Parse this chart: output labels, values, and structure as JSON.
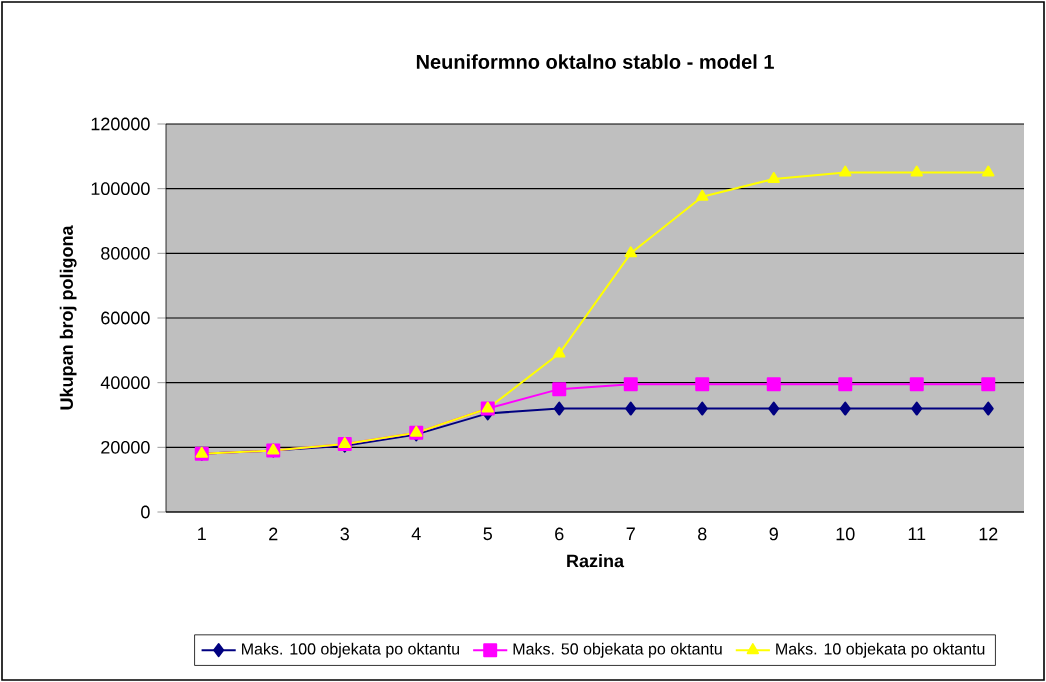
{
  "chart_data": {
    "type": "line",
    "title": "Neuniformno oktalno stablo - model 1",
    "xlabel": "Razina",
    "ylabel": "Ukupan broj poligona",
    "categories": [
      "1",
      "2",
      "3",
      "4",
      "5",
      "6",
      "7",
      "8",
      "9",
      "10",
      "11",
      "12"
    ],
    "series": [
      {
        "name": "Maks. 100 objekata po oktantu",
        "color": "#000080",
        "marker": "diamond",
        "values": [
          18000,
          19000,
          20500,
          24000,
          30500,
          32000,
          32000,
          32000,
          32000,
          32000,
          32000,
          32000
        ]
      },
      {
        "name": "Maks. 50 objekata po oktantu",
        "color": "#ff00ff",
        "marker": "square",
        "values": [
          18000,
          19000,
          21000,
          24500,
          32000,
          38000,
          39500,
          39500,
          39500,
          39500,
          39500,
          39500
        ]
      },
      {
        "name": "Maks. 10 objekata po oktantu",
        "color": "#ffff00",
        "marker": "triangle",
        "values": [
          18000,
          19000,
          21000,
          24500,
          32000,
          49000,
          80000,
          97500,
          103000,
          105000,
          105000,
          105000
        ]
      }
    ],
    "ylim": [
      0,
      120000
    ],
    "yticks": [
      0,
      20000,
      40000,
      60000,
      80000,
      100000,
      120000
    ],
    "grid": "y",
    "legend": "bottom",
    "line_style": "solid"
  }
}
